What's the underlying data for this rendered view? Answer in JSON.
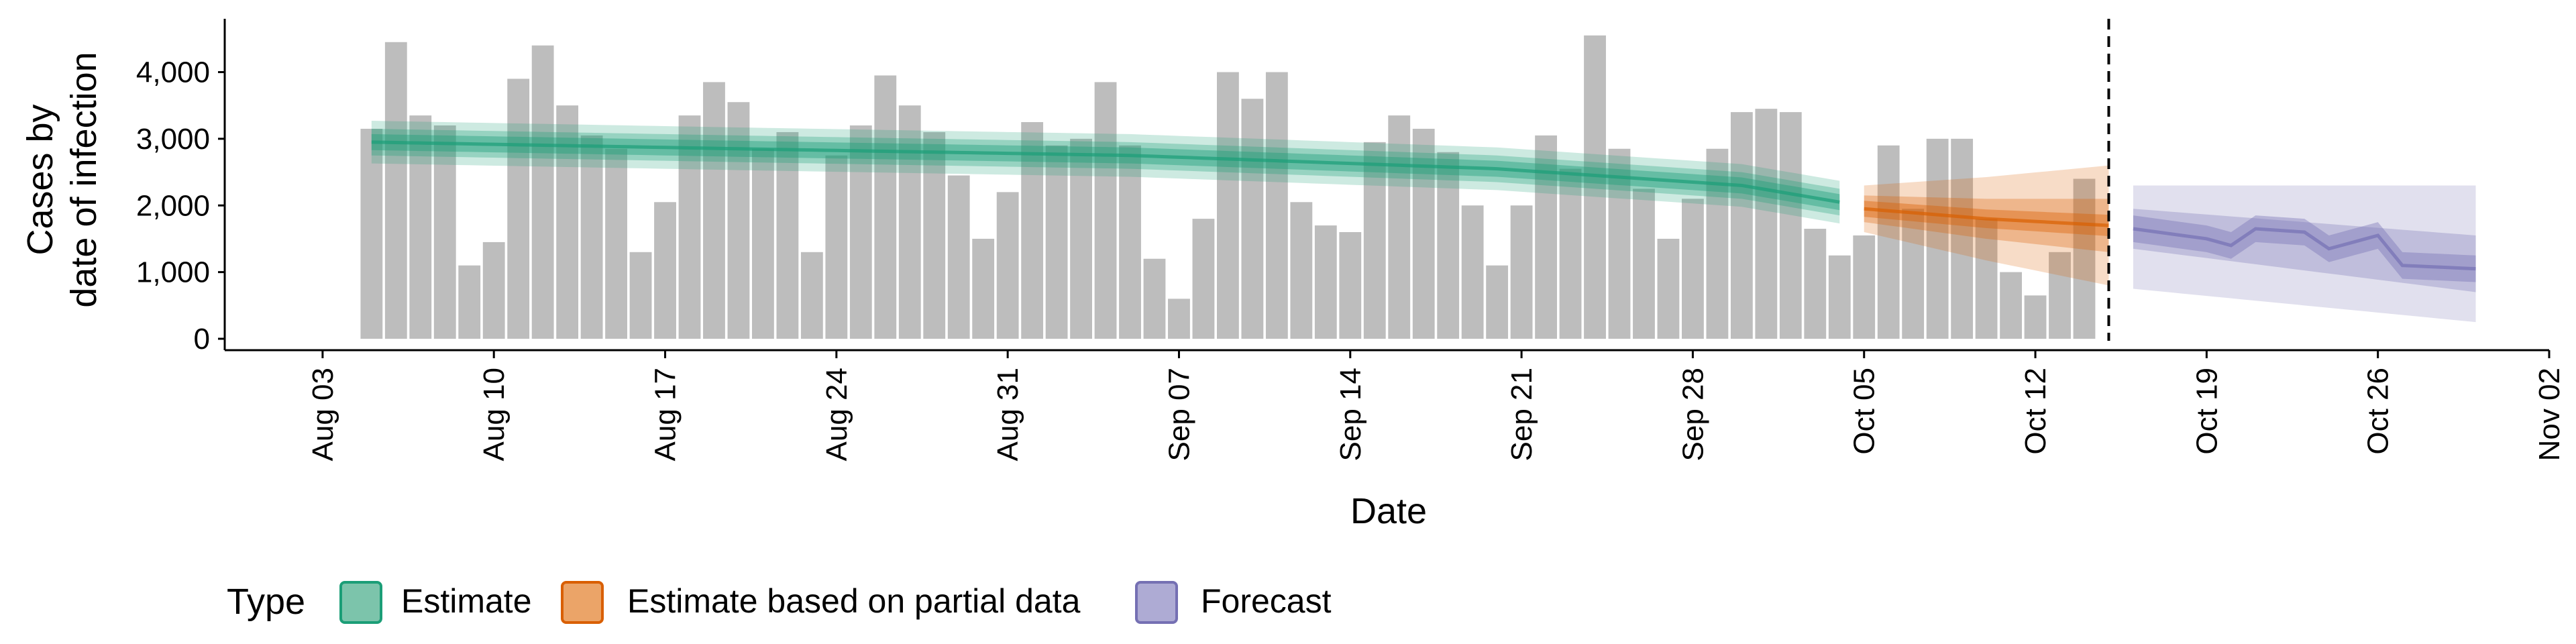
{
  "chart_data": {
    "type": "bar",
    "title": "",
    "xlabel": "Date",
    "ylabel_lines": [
      "Cases by",
      "date of infection"
    ],
    "ylim": [
      0,
      4800
    ],
    "y_ticks": [
      0,
      1000,
      2000,
      3000,
      4000
    ],
    "y_tick_labels": [
      "0",
      "1,000",
      "2,000",
      "3,000",
      "4,000"
    ],
    "x_range": [
      "2020-07-30",
      "2020-11-02"
    ],
    "x_ticks": [
      "2020-08-03",
      "2020-08-10",
      "2020-08-17",
      "2020-08-24",
      "2020-08-31",
      "2020-09-07",
      "2020-09-14",
      "2020-09-21",
      "2020-09-28",
      "2020-10-05",
      "2020-10-12",
      "2020-10-19",
      "2020-10-26",
      "2020-11-02"
    ],
    "x_tick_labels": [
      "Aug 03",
      "Aug 10",
      "Aug 17",
      "Aug 24",
      "Aug 31",
      "Sep 07",
      "Sep 14",
      "Sep 21",
      "Sep 28",
      "Oct 05",
      "Oct 12",
      "Oct 19",
      "Oct 26",
      "Nov 02"
    ],
    "vline_date": "2020-10-15",
    "bar_dates_start": "2020-08-05",
    "bars": [
      3150,
      4450,
      3350,
      3200,
      1100,
      1450,
      3900,
      4400,
      3500,
      3050,
      2850,
      1300,
      2050,
      3350,
      3850,
      3550,
      2850,
      3100,
      1300,
      2750,
      3200,
      3950,
      3500,
      3100,
      2450,
      1500,
      2200,
      3250,
      2900,
      3000,
      3850,
      2900,
      1200,
      600,
      1800,
      4000,
      3600,
      4000,
      2050,
      1700,
      1600,
      2950,
      3350,
      3150,
      2800,
      2000,
      1100,
      2000,
      3050,
      2550,
      4550,
      2850,
      2250,
      1500,
      2100,
      2850,
      3400,
      3450,
      3400,
      1650,
      1250,
      1550,
      2900,
      1950,
      3000,
      3000,
      1800,
      1000,
      650,
      1300,
      2400
    ],
    "legend_title": "Type",
    "legend_position": "bottom",
    "series": [
      {
        "name": "Estimate",
        "color": "#1b9e77",
        "start": "2020-08-05",
        "end": "2020-10-04",
        "median_keys": [
          [
            "2020-08-05",
            2950
          ],
          [
            "2020-08-20",
            2850
          ],
          [
            "2020-09-05",
            2750
          ],
          [
            "2020-09-20",
            2550
          ],
          [
            "2020-09-30",
            2300
          ],
          [
            "2020-10-04",
            2050
          ]
        ],
        "inner_halfwidth": 120,
        "mid_halfwidth": 200,
        "outer_halfwidth": 320
      },
      {
        "name": "Estimate based on partial data",
        "color": "#d95f02",
        "start": "2020-10-05",
        "end": "2020-10-15",
        "median_keys": [
          [
            "2020-10-05",
            1950
          ],
          [
            "2020-10-10",
            1800
          ],
          [
            "2020-10-15",
            1700
          ]
        ],
        "inner_halfwidth_keys": [
          [
            "2020-10-05",
            120
          ],
          [
            "2020-10-15",
            160
          ]
        ],
        "mid_halfwidth_keys": [
          [
            "2020-10-05",
            200
          ],
          [
            "2020-10-15",
            400
          ]
        ],
        "outer_halfwidth_keys": [
          [
            "2020-10-05",
            350
          ],
          [
            "2020-10-15",
            900
          ]
        ]
      },
      {
        "name": "Forecast",
        "color": "#7570b3",
        "start": "2020-10-16",
        "end": "2020-10-30",
        "median_keys": [
          [
            "2020-10-16",
            1650
          ],
          [
            "2020-10-19",
            1500
          ],
          [
            "2020-10-20",
            1400
          ],
          [
            "2020-10-21",
            1650
          ],
          [
            "2020-10-23",
            1600
          ],
          [
            "2020-10-24",
            1350
          ],
          [
            "2020-10-26",
            1550
          ],
          [
            "2020-10-27",
            1100
          ],
          [
            "2020-10-30",
            1050
          ]
        ],
        "inner_halfwidth": 200,
        "mid_lower_keys": [
          [
            "2020-10-16",
            1350
          ],
          [
            "2020-10-30",
            700
          ]
        ],
        "mid_upper_keys": [
          [
            "2020-10-16",
            1950
          ],
          [
            "2020-10-30",
            1550
          ]
        ],
        "outer_lower_keys": [
          [
            "2020-10-16",
            750
          ],
          [
            "2020-10-30",
            250
          ]
        ],
        "outer_upper_keys": [
          [
            "2020-10-16",
            2300
          ],
          [
            "2020-10-30",
            2300
          ]
        ]
      }
    ]
  },
  "legend_colors": {
    "Estimate_fill": "#7cc4ab",
    "Estimate_stroke": "#1b9e77",
    "Partial_fill": "#eba468",
    "Partial_stroke": "#d95f02",
    "Forecast_fill": "#aeabd4",
    "Forecast_stroke": "#7570b3"
  },
  "bar_color": "#bdbdbd"
}
